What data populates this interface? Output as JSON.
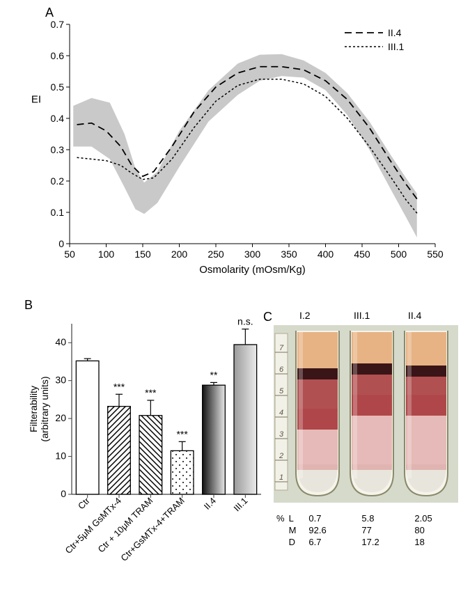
{
  "panelA": {
    "label": "A",
    "type": "line",
    "xlabel": "Osmolarity  (mOsm/Kg)",
    "ylabel": "EI",
    "xlim": [
      50,
      550
    ],
    "ylim": [
      0,
      0.7
    ],
    "xticks": [
      50,
      100,
      150,
      200,
      250,
      300,
      350,
      400,
      450,
      500,
      550
    ],
    "yticks": [
      0,
      0.1,
      0.2,
      0.3,
      0.4,
      0.5,
      0.6,
      0.7
    ],
    "band_color": "#c9c9c9",
    "band_upper": [
      [
        55,
        0.44
      ],
      [
        80,
        0.465
      ],
      [
        105,
        0.45
      ],
      [
        125,
        0.35
      ],
      [
        140,
        0.24
      ],
      [
        152,
        0.195
      ],
      [
        170,
        0.23
      ],
      [
        200,
        0.36
      ],
      [
        240,
        0.49
      ],
      [
        280,
        0.575
      ],
      [
        310,
        0.603
      ],
      [
        340,
        0.605
      ],
      [
        370,
        0.585
      ],
      [
        400,
        0.545
      ],
      [
        430,
        0.48
      ],
      [
        460,
        0.39
      ],
      [
        490,
        0.28
      ],
      [
        510,
        0.21
      ],
      [
        525,
        0.16
      ]
    ],
    "band_lower": [
      [
        55,
        0.31
      ],
      [
        80,
        0.31
      ],
      [
        105,
        0.27
      ],
      [
        125,
        0.18
      ],
      [
        140,
        0.11
      ],
      [
        152,
        0.095
      ],
      [
        170,
        0.13
      ],
      [
        200,
        0.245
      ],
      [
        240,
        0.39
      ],
      [
        280,
        0.475
      ],
      [
        310,
        0.52
      ],
      [
        340,
        0.535
      ],
      [
        370,
        0.53
      ],
      [
        400,
        0.49
      ],
      [
        430,
        0.41
      ],
      [
        460,
        0.3
      ],
      [
        490,
        0.17
      ],
      [
        510,
        0.085
      ],
      [
        525,
        0.02
      ]
    ],
    "series": [
      {
        "name": "II.4",
        "dash": "10,6",
        "width": 1.8,
        "color": "#000000",
        "points": [
          [
            60,
            0.38
          ],
          [
            80,
            0.385
          ],
          [
            100,
            0.36
          ],
          [
            120,
            0.31
          ],
          [
            135,
            0.25
          ],
          [
            150,
            0.215
          ],
          [
            165,
            0.23
          ],
          [
            190,
            0.31
          ],
          [
            220,
            0.42
          ],
          [
            250,
            0.5
          ],
          [
            280,
            0.545
          ],
          [
            310,
            0.565
          ],
          [
            340,
            0.565
          ],
          [
            370,
            0.555
          ],
          [
            400,
            0.52
          ],
          [
            430,
            0.46
          ],
          [
            460,
            0.37
          ],
          [
            490,
            0.26
          ],
          [
            510,
            0.19
          ],
          [
            526,
            0.14
          ]
        ]
      },
      {
        "name": "III.1",
        "dash": "3,3",
        "width": 1.5,
        "color": "#000000",
        "points": [
          [
            60,
            0.275
          ],
          [
            80,
            0.27
          ],
          [
            100,
            0.265
          ],
          [
            120,
            0.25
          ],
          [
            135,
            0.225
          ],
          [
            150,
            0.205
          ],
          [
            165,
            0.21
          ],
          [
            190,
            0.27
          ],
          [
            220,
            0.37
          ],
          [
            250,
            0.455
          ],
          [
            280,
            0.505
          ],
          [
            310,
            0.525
          ],
          [
            340,
            0.525
          ],
          [
            370,
            0.51
          ],
          [
            400,
            0.47
          ],
          [
            430,
            0.4
          ],
          [
            460,
            0.31
          ],
          [
            490,
            0.21
          ],
          [
            510,
            0.14
          ],
          [
            526,
            0.095
          ]
        ]
      }
    ],
    "legend": [
      {
        "label": "II.4",
        "dash": "10,6",
        "width": 1.8
      },
      {
        "label": "III.1",
        "dash": "3,3",
        "width": 1.5
      }
    ],
    "label_fontsize": 15,
    "tick_fontsize": 14,
    "background_color": "#ffffff"
  },
  "panelB": {
    "label": "B",
    "type": "bar",
    "ylabel": "Filterability\n(arbitrary units)",
    "ylim": [
      0,
      45
    ],
    "yticks": [
      0,
      10,
      20,
      30,
      40
    ],
    "categories": [
      "Ctr",
      "Ctr+5μM GsMTx-4",
      "Ctr + 10μM TRAM",
      "Ctr+GsMTx-4+TRAM",
      "II.4",
      "III.1"
    ],
    "values": [
      35.2,
      23.2,
      20.8,
      11.5,
      28.8,
      39.5
    ],
    "errors": [
      0.6,
      3.2,
      4.0,
      2.4,
      0.7,
      4.1
    ],
    "significance": [
      "",
      "***",
      "***",
      "***",
      "**",
      "n.s."
    ],
    "fills": [
      "white",
      "hatch-ne",
      "hatch-nw",
      "dots",
      "grad-dark",
      "grad-light"
    ],
    "bar_border": "#000000",
    "axis_color": "#404040",
    "grid": "none",
    "bar_width": 0.72,
    "tick_fontsize": 13,
    "label_fontsize": 14
  },
  "panelC": {
    "label": "C",
    "tubes": [
      "I.2",
      "III.1",
      "II.4"
    ],
    "scale_marks": [
      1,
      2,
      3,
      4,
      5,
      6,
      7
    ],
    "colors": {
      "tube_outline": "#8a8a6a",
      "top_band": "#e3a36b",
      "dark_band": "#3a1517",
      "mid_band": "#a43236",
      "light_band": "#d88b8e",
      "bottom": "#e8e6dc",
      "photo_bg": "#d6dacb"
    },
    "rows": [
      {
        "label": "L",
        "vals": [
          "0.7",
          "5.8",
          "2.05"
        ]
      },
      {
        "label": "M",
        "vals": [
          "92.6",
          "77",
          "80"
        ]
      },
      {
        "label": "D",
        "vals": [
          "6.7",
          "17.2",
          "18"
        ]
      }
    ],
    "percent_label": "%"
  }
}
